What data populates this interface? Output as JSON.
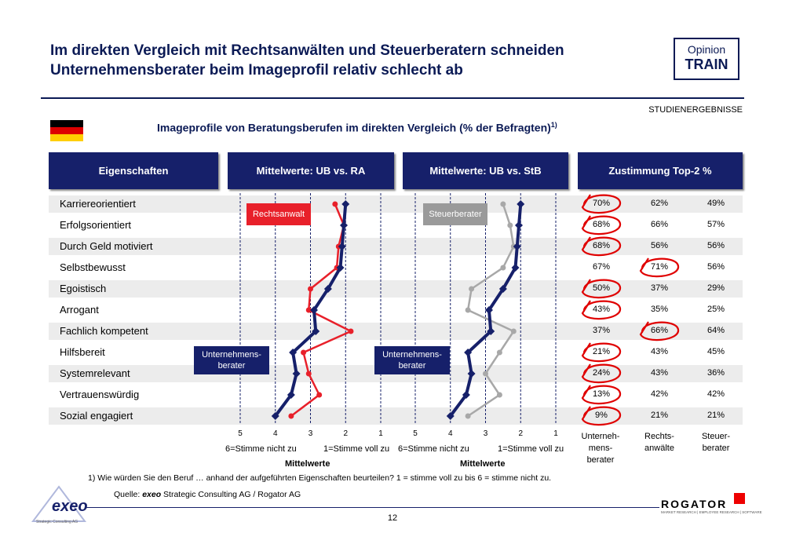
{
  "header": {
    "title_line1": "Im direkten Vergleich mit Rechtsanwälten und Steuerberatern schneiden",
    "title_line2": "Unternehmensberater beim Imageprofil relativ schlecht ab",
    "brand_line1": "Opinion",
    "brand_line2": "TRAIN",
    "section": "STUDIENERGEBNISSE",
    "subtitle": "Imageprofile von Beratungsberufen im direkten Vergleich (% der Befragten)",
    "subtitle_sup": "1)"
  },
  "columns": {
    "eigenschaften": "Eigenschaften",
    "ub_ra": "Mittelwerte: UB vs. RA",
    "ub_stb": "Mittelwerte: UB vs. StB",
    "top2": "Zustimmung Top-2 %"
  },
  "colors": {
    "ub": "#16206a",
    "ra": "#e8202a",
    "stb": "#a8a8a8",
    "header_bg": "#16206a",
    "circle": "#e00000"
  },
  "callouts": {
    "ra": "Rechtsanwalt",
    "stb": "Steuerberater",
    "ub_left": "Unternehmens-berater",
    "ub_right": "Unternehmens-berater"
  },
  "axis": {
    "ticks": [
      "5",
      "4",
      "3",
      "2",
      "1"
    ],
    "left_cap": "6=Stimme nicht zu",
    "right_cap": "1=Stimme voll zu",
    "title": "Mittelwerte"
  },
  "table_captions": {
    "ub": [
      "Unterneh-",
      "mens-",
      "berater"
    ],
    "ra": [
      "Rechts-",
      "anwälte"
    ],
    "stb": [
      "Steuer-",
      "berater"
    ]
  },
  "chart_data": [
    {
      "type": "line",
      "title": "Mittelwerte: UB vs. RA",
      "categories": [
        "Karriereorientiert",
        "Erfolgsorientiert",
        "Durch Geld motiviert",
        "Selbstbewusst",
        "Egoistisch",
        "Arrogant",
        "Fachlich kompetent",
        "Hilfsbereit",
        "Systemrelevant",
        "Vertrauenswürdig",
        "Sozial engagiert"
      ],
      "series": [
        {
          "name": "Unternehmens-berater",
          "values": [
            2.0,
            2.05,
            2.1,
            2.15,
            2.5,
            2.9,
            2.85,
            3.5,
            3.4,
            3.55,
            4.0
          ]
        },
        {
          "name": "Rechtsanwalt",
          "values": [
            2.3,
            2.05,
            2.2,
            2.25,
            3.0,
            3.05,
            1.85,
            3.2,
            3.05,
            2.75,
            3.55
          ]
        }
      ],
      "xlabel": "Mittelwerte",
      "xlim": [
        5,
        1
      ],
      "grid": true
    },
    {
      "type": "line",
      "title": "Mittelwerte: UB vs. StB",
      "categories": [
        "Karriereorientiert",
        "Erfolgsorientiert",
        "Durch Geld motiviert",
        "Selbstbewusst",
        "Egoistisch",
        "Arrogant",
        "Fachlich kompetent",
        "Hilfsbereit",
        "Systemrelevant",
        "Vertrauenswürdig",
        "Sozial engagiert"
      ],
      "series": [
        {
          "name": "Unternehmens-berater",
          "values": [
            2.0,
            2.05,
            2.1,
            2.15,
            2.5,
            2.9,
            2.85,
            3.5,
            3.4,
            3.55,
            4.0
          ]
        },
        {
          "name": "Steuerberater",
          "values": [
            2.5,
            2.3,
            2.2,
            2.5,
            3.4,
            3.5,
            2.2,
            2.6,
            3.0,
            2.6,
            3.5
          ]
        }
      ],
      "xlabel": "Mittelwerte",
      "xlim": [
        5,
        1
      ],
      "grid": true
    },
    {
      "type": "table",
      "title": "Zustimmung Top-2 %",
      "columns": [
        "Unternehmensberater",
        "Rechtsanwälte",
        "Steuerberater"
      ],
      "rows": [
        {
          "label": "Karriereorientiert",
          "values": [
            "70%",
            "62%",
            "49%"
          ],
          "circled": [
            true,
            false,
            false
          ]
        },
        {
          "label": "Erfolgsorientiert",
          "values": [
            "68%",
            "66%",
            "57%"
          ],
          "circled": [
            true,
            false,
            false
          ]
        },
        {
          "label": "Durch Geld motiviert",
          "values": [
            "68%",
            "56%",
            "56%"
          ],
          "circled": [
            true,
            false,
            false
          ]
        },
        {
          "label": "Selbstbewusst",
          "values": [
            "67%",
            "71%",
            "56%"
          ],
          "circled": [
            false,
            true,
            false
          ]
        },
        {
          "label": "Egoistisch",
          "values": [
            "50%",
            "37%",
            "29%"
          ],
          "circled": [
            true,
            false,
            false
          ]
        },
        {
          "label": "Arrogant",
          "values": [
            "43%",
            "35%",
            "25%"
          ],
          "circled": [
            true,
            false,
            false
          ]
        },
        {
          "label": "Fachlich kompetent",
          "values": [
            "37%",
            "66%",
            "64%"
          ],
          "circled": [
            false,
            true,
            false
          ]
        },
        {
          "label": "Hilfsbereit",
          "values": [
            "21%",
            "43%",
            "45%"
          ],
          "circled": [
            true,
            false,
            false
          ]
        },
        {
          "label": "Systemrelevant",
          "values": [
            "24%",
            "43%",
            "36%"
          ],
          "circled": [
            true,
            false,
            false
          ]
        },
        {
          "label": "Vertrauenswürdig",
          "values": [
            "13%",
            "42%",
            "42%"
          ],
          "circled": [
            true,
            false,
            false
          ]
        },
        {
          "label": "Sozial engagiert",
          "values": [
            "9%",
            "21%",
            "21%"
          ],
          "circled": [
            true,
            false,
            false
          ]
        }
      ]
    }
  ],
  "footer": {
    "footnote": "1)    Wie würden Sie den Beruf … anhand der aufgeführten Eigenschaften beurteilen? 1 = stimme voll zu bis 6 = stimme nicht zu.",
    "source_prefix": "Quelle: ",
    "source_brand": "exeo",
    "source_rest": " Strategic Consulting AG / Rogator AG",
    "page": "12",
    "exeo_logo": "exeo",
    "exeo_sub": "Strategic Consulting AG",
    "rogator_logo": "ROGATOR",
    "rogator_sub": "MARKET RESEARCH | EMPLOYEE RESEARCH | SOFTWARE"
  }
}
